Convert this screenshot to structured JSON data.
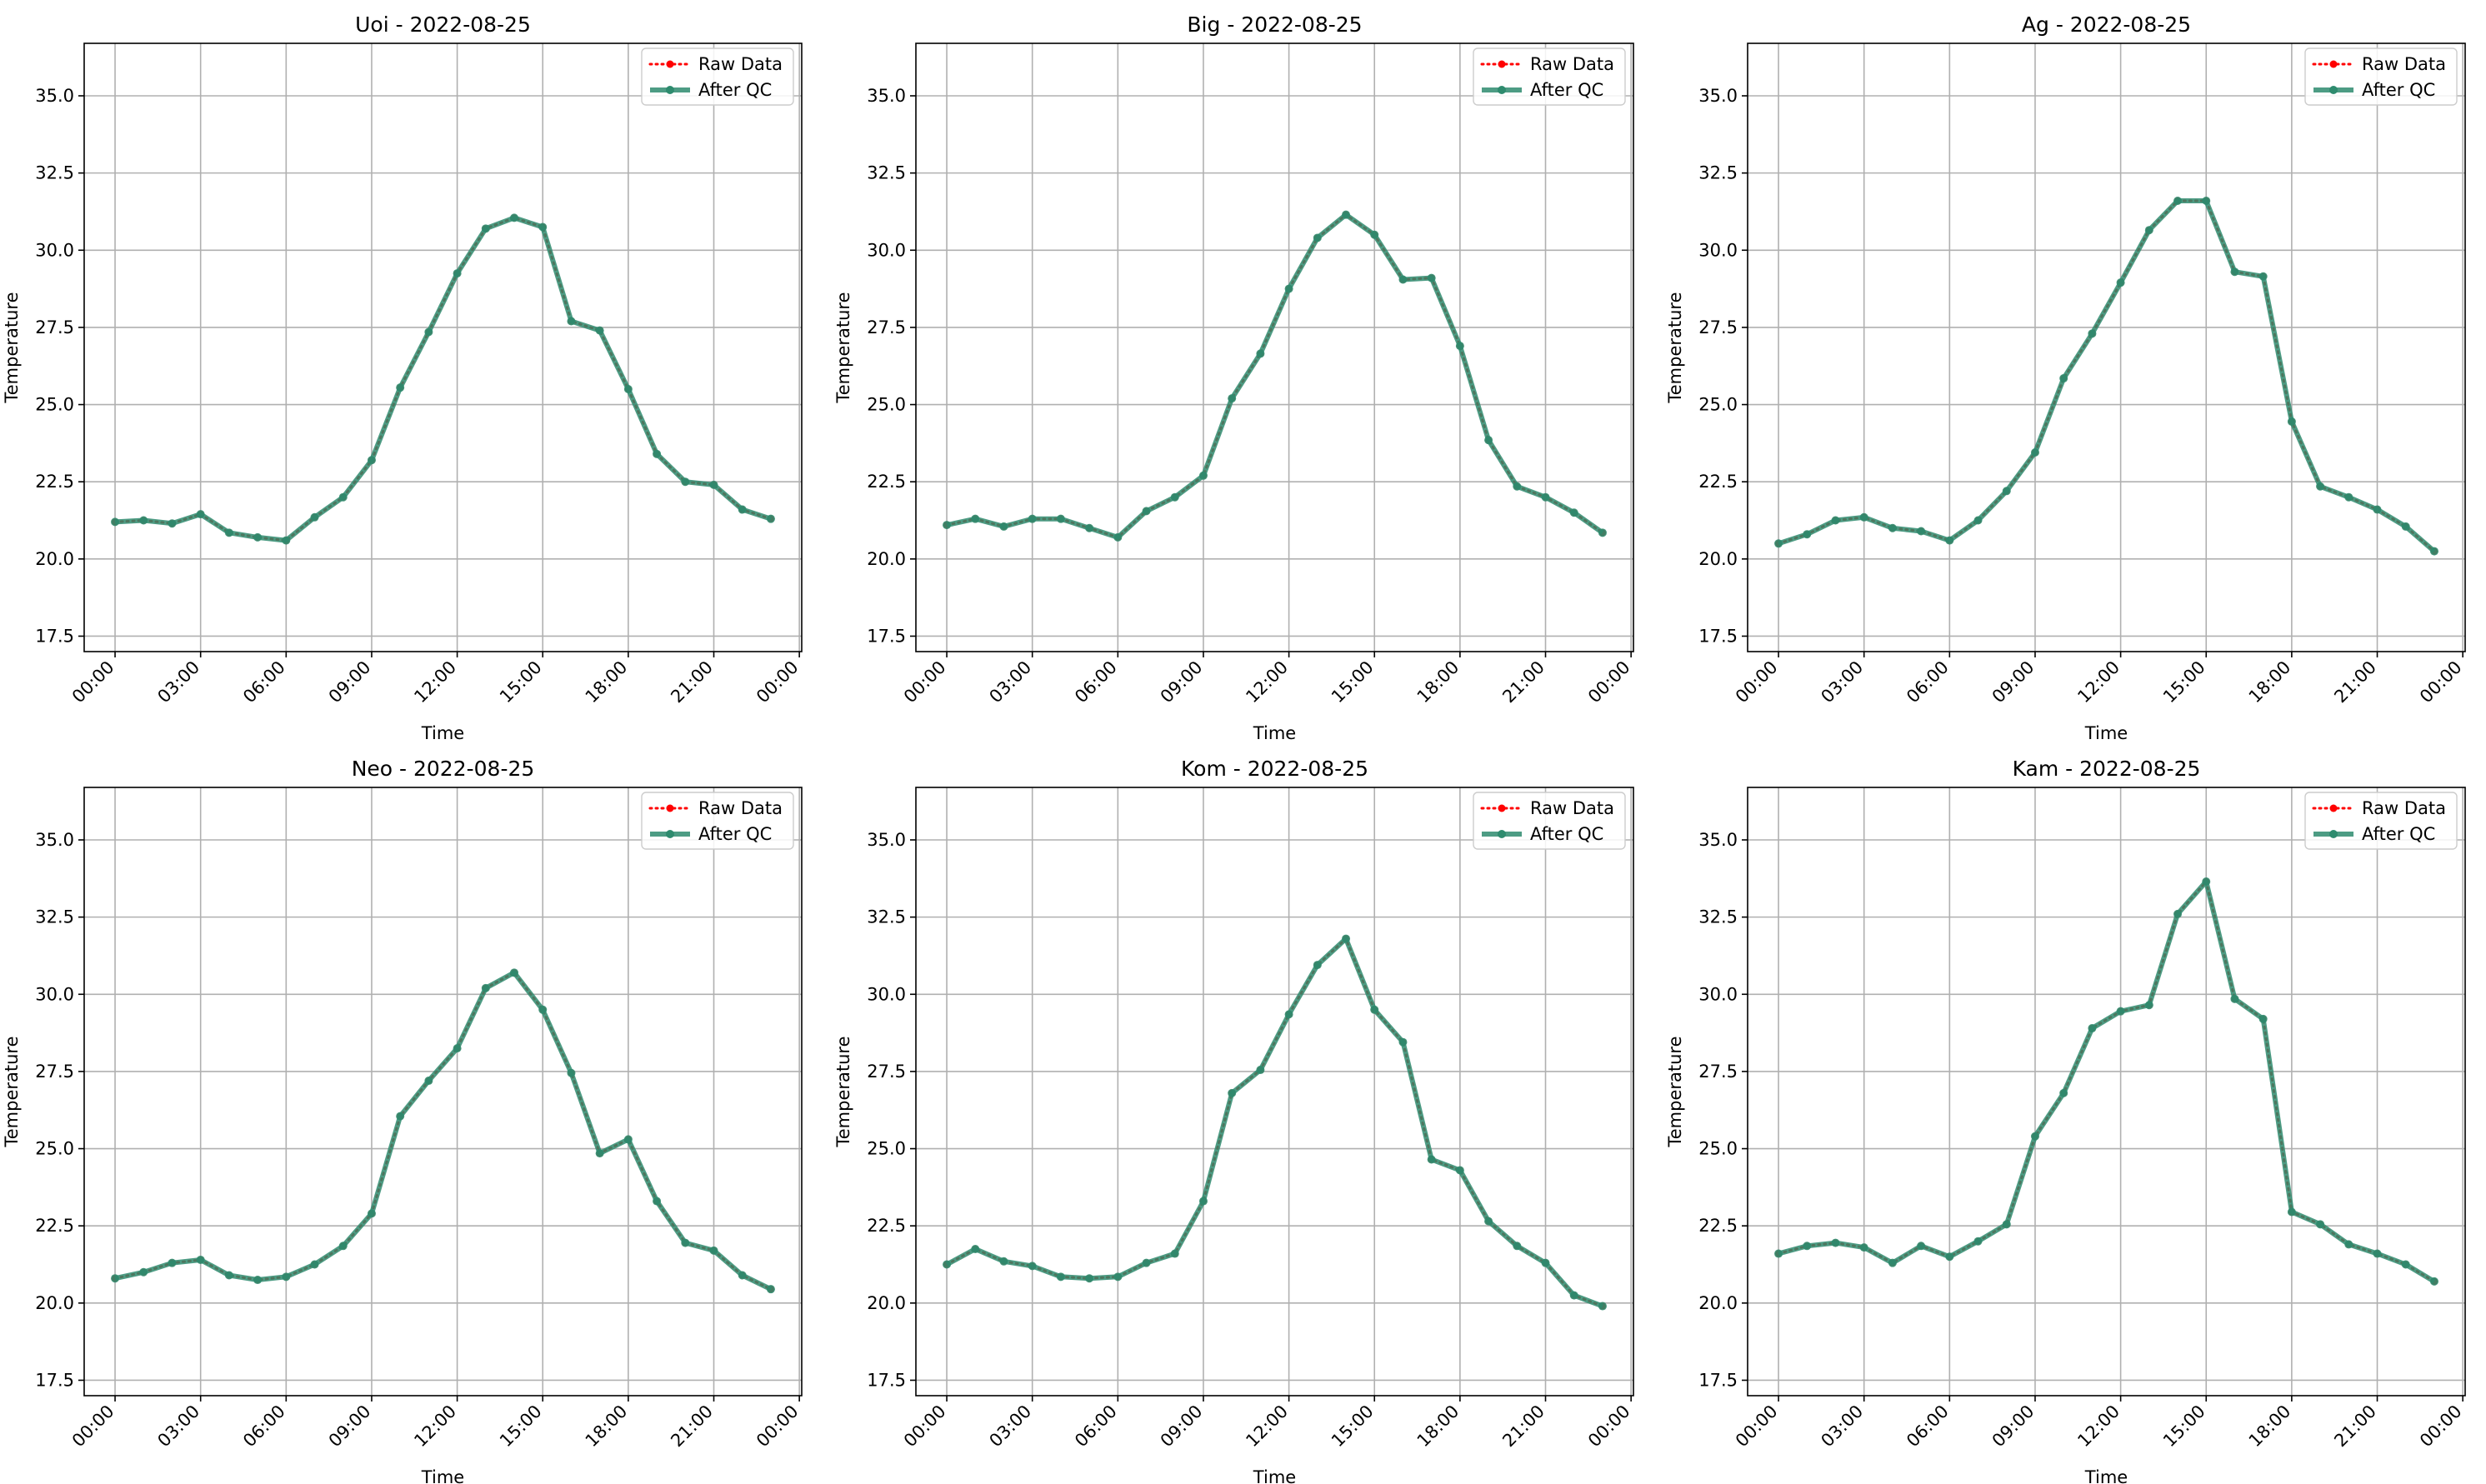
{
  "figure": {
    "background": "#ffffff"
  },
  "legend": {
    "raw_label": "Raw Data",
    "qc_label": "After QC",
    "placement": "upper right",
    "raw_color": "#ff0000",
    "qc_color": "#2e8b6e"
  },
  "x_ticks": [
    "00:00",
    "03:00",
    "06:00",
    "09:00",
    "12:00",
    "15:00",
    "18:00",
    "21:00",
    "00:00"
  ],
  "y_ticks": [
    "17.5",
    "20.0",
    "22.5",
    "25.0",
    "27.5",
    "30.0",
    "32.5",
    "35.0"
  ],
  "chart_data": [
    {
      "type": "line",
      "title": "Uoi - 2022-08-25",
      "xlabel": "Time",
      "ylabel": "Temperature",
      "xlim": [
        "2022-08-24 22:55",
        "2022-08-26 00:05"
      ],
      "ylim": [
        17.0,
        36.7
      ],
      "grid": true,
      "legend": "upper right",
      "x": [
        "00:00",
        "01:00",
        "02:00",
        "03:00",
        "04:00",
        "05:00",
        "06:00",
        "07:00",
        "08:00",
        "09:00",
        "10:00",
        "11:00",
        "12:00",
        "13:00",
        "14:00",
        "15:00",
        "16:00",
        "17:00",
        "18:00",
        "19:00",
        "20:00",
        "21:00",
        "22:00",
        "23:00"
      ],
      "series": [
        {
          "name": "Raw Data",
          "values": [
            21.2,
            21.25,
            21.15,
            21.45,
            20.85,
            20.7,
            20.6,
            21.35,
            22.0,
            23.2,
            25.55,
            27.35,
            29.25,
            30.7,
            31.05,
            30.75,
            27.7,
            27.4,
            25.5,
            23.4,
            22.5,
            22.4,
            21.6,
            21.3
          ]
        },
        {
          "name": "After QC",
          "values": [
            21.2,
            21.25,
            21.15,
            21.45,
            20.85,
            20.7,
            20.6,
            21.35,
            22.0,
            23.2,
            25.55,
            27.35,
            29.25,
            30.7,
            31.05,
            30.75,
            27.7,
            27.4,
            25.5,
            23.4,
            22.5,
            22.4,
            21.6,
            21.3
          ]
        }
      ]
    },
    {
      "type": "line",
      "title": "Big - 2022-08-25",
      "xlabel": "Time",
      "ylabel": "Temperature",
      "xlim": [
        "2022-08-24 22:55",
        "2022-08-26 00:05"
      ],
      "ylim": [
        17.0,
        36.7
      ],
      "grid": true,
      "legend": "upper right",
      "x": [
        "00:00",
        "01:00",
        "02:00",
        "03:00",
        "04:00",
        "05:00",
        "06:00",
        "07:00",
        "08:00",
        "09:00",
        "10:00",
        "11:00",
        "12:00",
        "13:00",
        "14:00",
        "15:00",
        "16:00",
        "17:00",
        "18:00",
        "19:00",
        "20:00",
        "21:00",
        "22:00",
        "23:00"
      ],
      "series": [
        {
          "name": "Raw Data",
          "values": [
            21.1,
            21.3,
            21.05,
            21.3,
            21.3,
            21.0,
            20.7,
            21.55,
            22.0,
            22.7,
            25.2,
            26.65,
            28.75,
            30.4,
            31.15,
            30.5,
            29.05,
            29.1,
            26.9,
            23.85,
            22.35,
            22.0,
            21.5,
            20.85
          ]
        },
        {
          "name": "After QC",
          "values": [
            21.1,
            21.3,
            21.05,
            21.3,
            21.3,
            21.0,
            20.7,
            21.55,
            22.0,
            22.7,
            25.2,
            26.65,
            28.75,
            30.4,
            31.15,
            30.5,
            29.05,
            29.1,
            26.9,
            23.85,
            22.35,
            22.0,
            21.5,
            20.85
          ]
        }
      ]
    },
    {
      "type": "line",
      "title": "Ag - 2022-08-25",
      "xlabel": "Time",
      "ylabel": "Temperature",
      "xlim": [
        "2022-08-24 22:55",
        "2022-08-26 00:05"
      ],
      "ylim": [
        17.0,
        36.7
      ],
      "grid": true,
      "legend": "upper right",
      "x": [
        "00:00",
        "01:00",
        "02:00",
        "03:00",
        "04:00",
        "05:00",
        "06:00",
        "07:00",
        "08:00",
        "09:00",
        "10:00",
        "11:00",
        "12:00",
        "13:00",
        "14:00",
        "15:00",
        "16:00",
        "17:00",
        "18:00",
        "19:00",
        "20:00",
        "21:00",
        "22:00",
        "23:00"
      ],
      "series": [
        {
          "name": "Raw Data",
          "values": [
            20.5,
            20.8,
            21.25,
            21.35,
            21.0,
            20.9,
            20.6,
            21.25,
            22.2,
            23.45,
            25.85,
            27.3,
            28.95,
            30.65,
            31.6,
            31.6,
            29.3,
            29.15,
            24.45,
            22.35,
            22.0,
            21.6,
            21.05,
            20.25
          ]
        },
        {
          "name": "After QC",
          "values": [
            20.5,
            20.8,
            21.25,
            21.35,
            21.0,
            20.9,
            20.6,
            21.25,
            22.2,
            23.45,
            25.85,
            27.3,
            28.95,
            30.65,
            31.6,
            31.6,
            29.3,
            29.15,
            24.45,
            22.35,
            22.0,
            21.6,
            21.05,
            20.25
          ]
        }
      ]
    },
    {
      "type": "line",
      "title": "Neo - 2022-08-25",
      "xlabel": "Time",
      "ylabel": "Temperature",
      "xlim": [
        "2022-08-24 22:55",
        "2022-08-26 00:05"
      ],
      "ylim": [
        17.0,
        36.7
      ],
      "grid": true,
      "legend": "upper right",
      "x": [
        "00:00",
        "01:00",
        "02:00",
        "03:00",
        "04:00",
        "05:00",
        "06:00",
        "07:00",
        "08:00",
        "09:00",
        "10:00",
        "11:00",
        "12:00",
        "13:00",
        "14:00",
        "15:00",
        "16:00",
        "17:00",
        "18:00",
        "19:00",
        "20:00",
        "21:00",
        "22:00",
        "23:00"
      ],
      "series": [
        {
          "name": "Raw Data",
          "values": [
            20.8,
            21.0,
            21.3,
            21.4,
            20.9,
            20.75,
            20.85,
            21.25,
            21.85,
            22.9,
            26.05,
            27.2,
            28.25,
            30.2,
            30.7,
            29.5,
            27.45,
            24.85,
            25.3,
            23.3,
            21.95,
            21.7,
            20.9,
            20.45
          ]
        },
        {
          "name": "After QC",
          "values": [
            20.8,
            21.0,
            21.3,
            21.4,
            20.9,
            20.75,
            20.85,
            21.25,
            21.85,
            22.9,
            26.05,
            27.2,
            28.25,
            30.2,
            30.7,
            29.5,
            27.45,
            24.85,
            25.3,
            23.3,
            21.95,
            21.7,
            20.9,
            20.45
          ]
        }
      ]
    },
    {
      "type": "line",
      "title": "Kom - 2022-08-25",
      "xlabel": "Time",
      "ylabel": "Temperature",
      "xlim": [
        "2022-08-24 22:55",
        "2022-08-26 00:05"
      ],
      "ylim": [
        17.0,
        36.7
      ],
      "grid": true,
      "legend": "upper right",
      "x": [
        "00:00",
        "01:00",
        "02:00",
        "03:00",
        "04:00",
        "05:00",
        "06:00",
        "07:00",
        "08:00",
        "09:00",
        "10:00",
        "11:00",
        "12:00",
        "13:00",
        "14:00",
        "15:00",
        "16:00",
        "17:00",
        "18:00",
        "19:00",
        "20:00",
        "21:00",
        "22:00",
        "23:00"
      ],
      "series": [
        {
          "name": "Raw Data",
          "values": [
            21.25,
            21.75,
            21.35,
            21.2,
            20.85,
            20.8,
            20.85,
            21.3,
            21.6,
            23.3,
            26.8,
            27.55,
            29.35,
            30.95,
            31.8,
            29.5,
            28.45,
            24.65,
            24.3,
            22.65,
            21.85,
            21.3,
            20.25,
            19.9
          ]
        },
        {
          "name": "After QC",
          "values": [
            21.25,
            21.75,
            21.35,
            21.2,
            20.85,
            20.8,
            20.85,
            21.3,
            21.6,
            23.3,
            26.8,
            27.55,
            29.35,
            30.95,
            31.8,
            29.5,
            28.45,
            24.65,
            24.3,
            22.65,
            21.85,
            21.3,
            20.25,
            19.9
          ]
        }
      ]
    },
    {
      "type": "line",
      "title": "Kam - 2022-08-25",
      "xlabel": "Time",
      "ylabel": "Temperature",
      "xlim": [
        "2022-08-24 22:55",
        "2022-08-26 00:05"
      ],
      "ylim": [
        17.0,
        36.7
      ],
      "grid": true,
      "legend": "upper right",
      "x": [
        "00:00",
        "01:00",
        "02:00",
        "03:00",
        "04:00",
        "05:00",
        "06:00",
        "07:00",
        "08:00",
        "09:00",
        "10:00",
        "11:00",
        "12:00",
        "13:00",
        "14:00",
        "15:00",
        "16:00",
        "17:00",
        "18:00",
        "19:00",
        "20:00",
        "21:00",
        "22:00",
        "23:00"
      ],
      "series": [
        {
          "name": "Raw Data",
          "values": [
            21.6,
            21.85,
            21.95,
            21.8,
            21.3,
            21.85,
            21.5,
            22.0,
            22.55,
            25.4,
            26.8,
            28.9,
            29.45,
            29.65,
            32.6,
            33.65,
            29.85,
            29.2,
            22.95,
            22.55,
            21.9,
            21.6,
            21.25,
            20.7
          ]
        },
        {
          "name": "After QC",
          "values": [
            21.6,
            21.85,
            21.95,
            21.8,
            21.3,
            21.85,
            21.5,
            22.0,
            22.55,
            25.4,
            26.8,
            28.9,
            29.45,
            29.65,
            32.6,
            33.65,
            29.85,
            29.2,
            22.95,
            22.55,
            21.9,
            21.6,
            21.25,
            20.7
          ]
        }
      ]
    }
  ]
}
